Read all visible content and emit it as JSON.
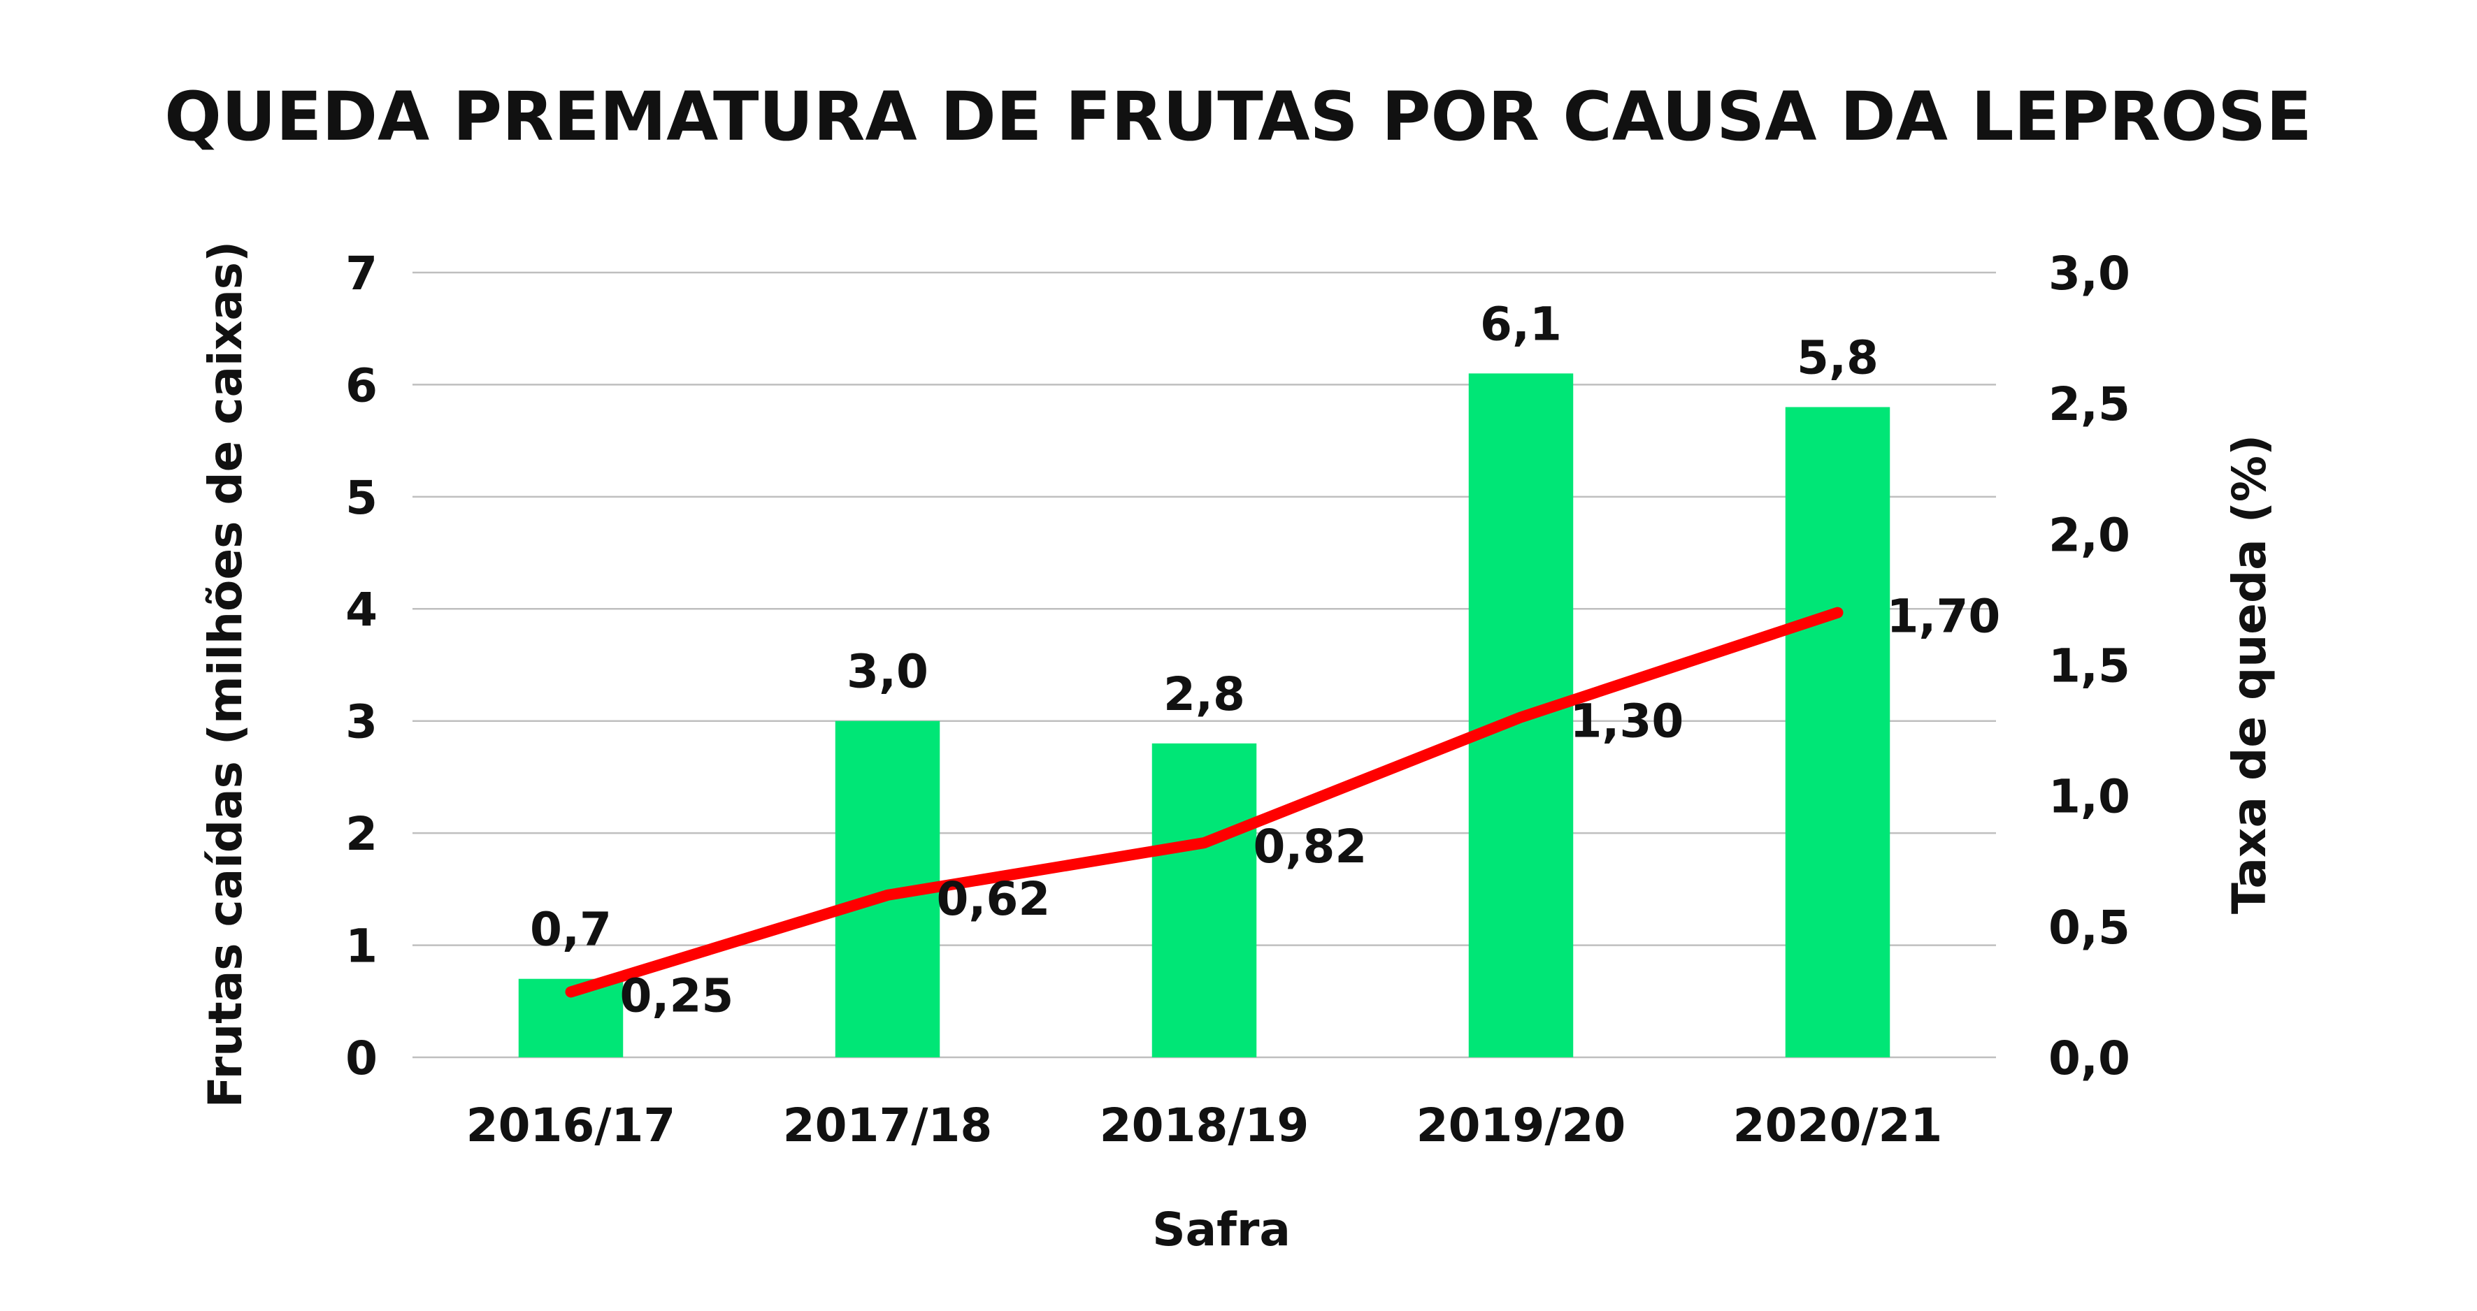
{
  "chart_data": {
    "type": "bar",
    "title": "QUEDA  PREMATURA DE FRUTAS POR CAUSA DA LEPROSE",
    "xlabel": "Safra",
    "ylabel": "Frutas caídas (milhões de caixas)",
    "ylabel_right": "Taxa de queda (%)",
    "categories": [
      "2016/17",
      "2017/18",
      "2018/19",
      "2019/20",
      "2020/21"
    ],
    "bar_series": {
      "values": [
        0.7,
        3.0,
        2.8,
        6.1,
        5.8
      ],
      "labels": [
        "0,7",
        "3,0",
        "2,8",
        "6,1",
        "5,8"
      ],
      "color": "#00e676",
      "axis": "left"
    },
    "line_series": {
      "values": [
        0.25,
        0.62,
        0.82,
        1.3,
        1.7
      ],
      "labels": [
        "0,25",
        "0,62",
        "0,82",
        "1,30",
        "1,70"
      ],
      "color": "#ff0000",
      "axis": "right"
    },
    "ylim": [
      0,
      7
    ],
    "yticks": [
      "0",
      "1",
      "2",
      "3",
      "4",
      "5",
      "6",
      "7"
    ],
    "ylim_right": [
      0,
      3.0
    ],
    "yticks_right": [
      "0,0",
      "0,5",
      "1,0",
      "1,5",
      "2,0",
      "2,5",
      "3,0"
    ],
    "grid": true,
    "gridline_color": "#bfbfbf"
  }
}
